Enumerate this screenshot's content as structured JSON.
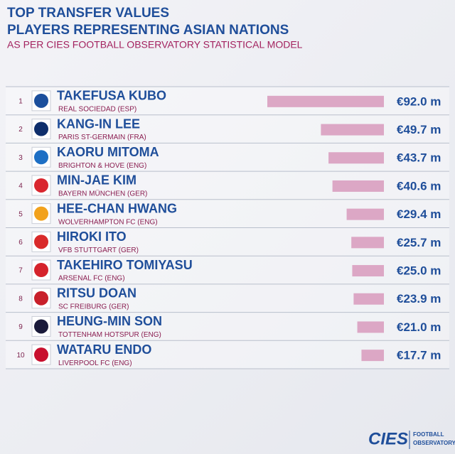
{
  "chart_data": {
    "type": "bar",
    "title": "TOP TRANSFER VALUES",
    "subtitle": "PLAYERS REPRESENTING ASIAN NATIONS",
    "note": "AS PER CIES FOOTBALL OBSERVATORY STATISTICAL MODEL",
    "ranks": [
      1,
      2,
      3,
      4,
      5,
      6,
      7,
      8,
      9,
      10
    ],
    "categories": [
      "TAKEFUSA KUBO",
      "KANG-IN LEE",
      "KAORU MITOMA",
      "MIN-JAE KIM",
      "HEE-CHAN HWANG",
      "HIROKI ITO",
      "TAKEHIRO TOMIYASU",
      "RITSU DOAN",
      "HEUNG-MIN SON",
      "WATARU ENDO"
    ],
    "clubs": [
      "REAL SOCIEDAD (ESP)",
      "PARIS ST-GERMAIN (FRA)",
      "BRIGHTON & HOVE (ENG)",
      "BAYERN MÜNCHEN (GER)",
      "WOLVERHAMPTON FC (ENG)",
      "VFB STUTTGART (GER)",
      "ARSENAL FC (ENG)",
      "SC FREIBURG (GER)",
      "TOTTENHAM HOTSPUR (ENG)",
      "LIVERPOOL FC (ENG)"
    ],
    "values": [
      92.0,
      49.7,
      43.7,
      40.6,
      29.4,
      25.7,
      25.0,
      23.9,
      21.0,
      17.7
    ],
    "value_labels": [
      "€92.0 m",
      "€49.7 m",
      "€43.7 m",
      "€40.6 m",
      "€29.4 m",
      "€25.7 m",
      "€25.0 m",
      "€23.9 m",
      "€21.0 m",
      "€17.7 m"
    ],
    "color": "#dca7c5",
    "footer": {
      "logo": "CIES",
      "line1": "FOOTBALL",
      "line2": "OBSERVATORY"
    }
  }
}
